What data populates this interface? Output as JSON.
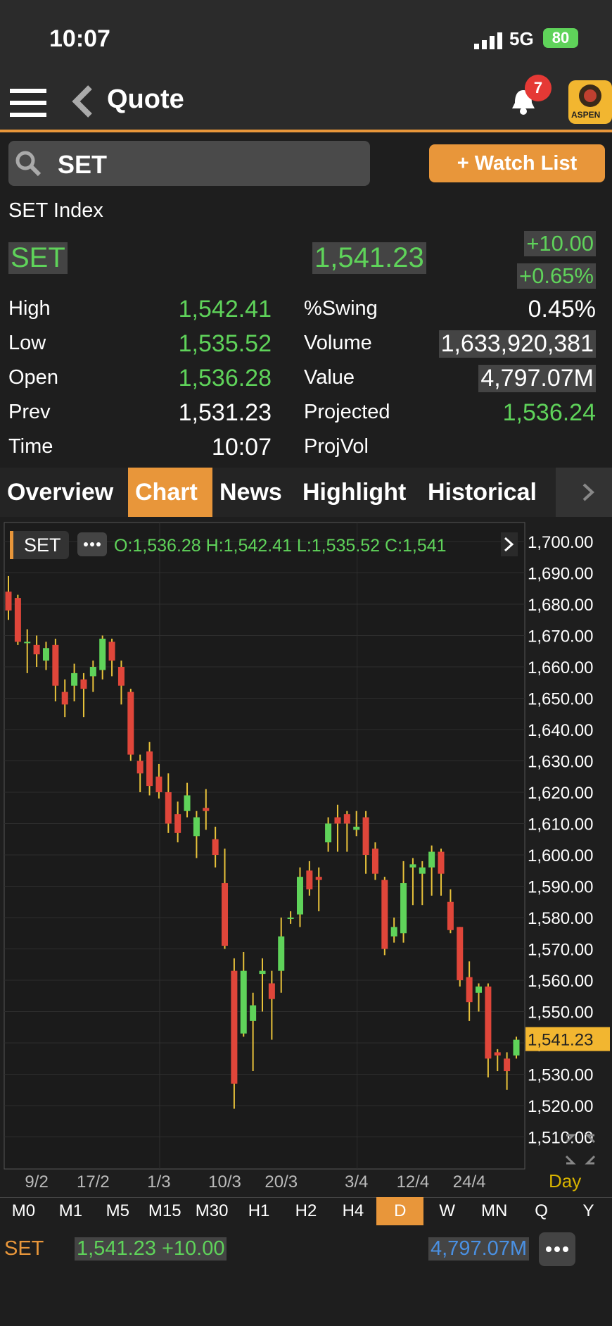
{
  "status": {
    "time": "10:07",
    "network": "5G",
    "battery": "80"
  },
  "nav": {
    "title": "Quote",
    "notification_count": "7",
    "logo_text": "ASPEN"
  },
  "search": {
    "value": "SET"
  },
  "watch_list_label": "+ Watch List",
  "quote": {
    "name": "SET Index",
    "symbol": "SET",
    "price": "1,541.23",
    "change": "+10.00",
    "change_pct": "+0.65%",
    "left": [
      {
        "label": "High",
        "value": "1,542.41",
        "color": "#5fd35a"
      },
      {
        "label": "Low",
        "value": "1,535.52",
        "color": "#5fd35a"
      },
      {
        "label": "Open",
        "value": "1,536.28",
        "color": "#5fd35a"
      },
      {
        "label": "Prev",
        "value": "1,531.23",
        "color": "#ffffff"
      },
      {
        "label": "Time",
        "value": "10:07",
        "color": "#ffffff"
      }
    ],
    "right": [
      {
        "label": "%Swing",
        "value": "0.45%",
        "color": "#ffffff",
        "boxed": false
      },
      {
        "label": "Volume",
        "value": "1,633,920,381",
        "color": "#ffffff",
        "boxed": true
      },
      {
        "label": "Value",
        "value": "4,797.07M",
        "color": "#ffffff",
        "boxed": true
      },
      {
        "label": "Projected",
        "value": "1,536.24",
        "color": "#5fd35a",
        "boxed": false
      },
      {
        "label": "ProjVol",
        "value": "",
        "color": "#ffffff",
        "boxed": false
      }
    ]
  },
  "tabs": [
    "Overview",
    "Chart",
    "News",
    "Highlight",
    "Historical"
  ],
  "active_tab": "Chart",
  "chart_header": {
    "symbol": "SET",
    "ohlc": "O:1,536.28  H:1,542.41  L:1,535.52  C:1,541"
  },
  "chart_data": {
    "type": "candlestick",
    "symbol": "SET",
    "y_ticks": [
      "1,700.00",
      "1,690.00",
      "1,680.00",
      "1,670.00",
      "1,660.00",
      "1,650.00",
      "1,640.00",
      "1,630.00",
      "1,620.00",
      "1,610.00",
      "1,600.00",
      "1,590.00",
      "1,580.00",
      "1,570.00",
      "1,560.00",
      "1,550.00",
      "1,540.00",
      "1,530.00",
      "1,520.00",
      "1,510.00"
    ],
    "ylim": [
      1505,
      1700
    ],
    "x_labels": [
      {
        "label": "9/2",
        "index": 3
      },
      {
        "label": "17/2",
        "index": 9
      },
      {
        "label": "1/3",
        "index": 16
      },
      {
        "label": "10/3",
        "index": 23
      },
      {
        "label": "20/3",
        "index": 29
      },
      {
        "label": "3/4",
        "index": 37
      },
      {
        "label": "12/4",
        "index": 43
      },
      {
        "label": "24/4",
        "index": 49
      }
    ],
    "last_price_label": "1,541.23",
    "last_price": 1541.23,
    "candles": [
      {
        "o": 1684,
        "h": 1689,
        "l": 1675,
        "c": 1678
      },
      {
        "o": 1682,
        "h": 1683,
        "l": 1667,
        "c": 1668
      },
      {
        "o": 1668,
        "h": 1672,
        "l": 1658,
        "c": 1668
      },
      {
        "o": 1667,
        "h": 1670,
        "l": 1660,
        "c": 1664
      },
      {
        "o": 1662,
        "h": 1668,
        "l": 1659,
        "c": 1666
      },
      {
        "o": 1667,
        "h": 1669,
        "l": 1649,
        "c": 1654
      },
      {
        "o": 1652,
        "h": 1656,
        "l": 1644,
        "c": 1648
      },
      {
        "o": 1654,
        "h": 1661,
        "l": 1649,
        "c": 1658
      },
      {
        "o": 1656,
        "h": 1658,
        "l": 1644,
        "c": 1653
      },
      {
        "o": 1657,
        "h": 1662,
        "l": 1652,
        "c": 1660
      },
      {
        "o": 1659,
        "h": 1670,
        "l": 1656,
        "c": 1669
      },
      {
        "o": 1668,
        "h": 1669,
        "l": 1657,
        "c": 1662
      },
      {
        "o": 1660,
        "h": 1662,
        "l": 1648,
        "c": 1654
      },
      {
        "o": 1652,
        "h": 1653,
        "l": 1630,
        "c": 1632
      },
      {
        "o": 1630,
        "h": 1632,
        "l": 1620,
        "c": 1626
      },
      {
        "o": 1633,
        "h": 1636,
        "l": 1619,
        "c": 1622
      },
      {
        "o": 1625,
        "h": 1629,
        "l": 1618,
        "c": 1620
      },
      {
        "o": 1620,
        "h": 1626,
        "l": 1607,
        "c": 1610
      },
      {
        "o": 1613,
        "h": 1617,
        "l": 1604,
        "c": 1607
      },
      {
        "o": 1614,
        "h": 1623,
        "l": 1612,
        "c": 1619
      },
      {
        "o": 1606,
        "h": 1614,
        "l": 1599,
        "c": 1612
      },
      {
        "o": 1615,
        "h": 1621,
        "l": 1608,
        "c": 1614
      },
      {
        "o": 1605,
        "h": 1609,
        "l": 1596,
        "c": 1600
      },
      {
        "o": 1591,
        "h": 1602,
        "l": 1570,
        "c": 1571
      },
      {
        "o": 1563,
        "h": 1567,
        "l": 1519,
        "c": 1527
      },
      {
        "o": 1543,
        "h": 1569,
        "l": 1542,
        "c": 1563
      },
      {
        "o": 1547,
        "h": 1556,
        "l": 1531,
        "c": 1552
      },
      {
        "o": 1562,
        "h": 1567,
        "l": 1550,
        "c": 1563
      },
      {
        "o": 1559,
        "h": 1563,
        "l": 1541,
        "c": 1554
      },
      {
        "o": 1563,
        "h": 1580,
        "l": 1556,
        "c": 1574
      },
      {
        "o": 1580,
        "h": 1582,
        "l": 1578,
        "c": 1580
      },
      {
        "o": 1581,
        "h": 1596,
        "l": 1577,
        "c": 1593
      },
      {
        "o": 1595,
        "h": 1598,
        "l": 1587,
        "c": 1589
      },
      {
        "o": 1593,
        "h": 1596,
        "l": 1582,
        "c": 1592
      },
      {
        "o": 1604,
        "h": 1612,
        "l": 1601,
        "c": 1610
      },
      {
        "o": 1612,
        "h": 1616,
        "l": 1601,
        "c": 1610
      },
      {
        "o": 1613,
        "h": 1614,
        "l": 1601,
        "c": 1610
      },
      {
        "o": 1608,
        "h": 1614,
        "l": 1606,
        "c": 1609
      },
      {
        "o": 1612,
        "h": 1614,
        "l": 1594,
        "c": 1600
      },
      {
        "o": 1602,
        "h": 1604,
        "l": 1592,
        "c": 1594
      },
      {
        "o": 1592,
        "h": 1593,
        "l": 1568,
        "c": 1570
      },
      {
        "o": 1574,
        "h": 1580,
        "l": 1572,
        "c": 1577
      },
      {
        "o": 1575,
        "h": 1598,
        "l": 1572,
        "c": 1591
      },
      {
        "o": 1596,
        "h": 1599,
        "l": 1584,
        "c": 1597
      },
      {
        "o": 1594,
        "h": 1598,
        "l": 1584,
        "c": 1596
      },
      {
        "o": 1596,
        "h": 1603,
        "l": 1587,
        "c": 1601
      },
      {
        "o": 1601,
        "h": 1602,
        "l": 1587,
        "c": 1594
      },
      {
        "o": 1585,
        "h": 1589,
        "l": 1575,
        "c": 1576
      },
      {
        "o": 1577,
        "h": 1577,
        "l": 1558,
        "c": 1560
      },
      {
        "o": 1561,
        "h": 1566,
        "l": 1547,
        "c": 1553
      },
      {
        "o": 1556,
        "h": 1559,
        "l": 1550,
        "c": 1558
      },
      {
        "o": 1558,
        "h": 1559,
        "l": 1529,
        "c": 1535
      },
      {
        "o": 1537,
        "h": 1538,
        "l": 1531,
        "c": 1536
      },
      {
        "o": 1535,
        "h": 1537,
        "l": 1525,
        "c": 1531
      },
      {
        "o": 1536,
        "h": 1542,
        "l": 1535,
        "c": 1541
      }
    ]
  },
  "chart_footer": {
    "interval_label": "Day"
  },
  "periods": [
    "M0",
    "M1",
    "M5",
    "M15",
    "M30",
    "H1",
    "H2",
    "H4",
    "D",
    "W",
    "MN",
    "Q",
    "Y"
  ],
  "active_period": "D",
  "bottom": {
    "symbol": "SET",
    "price_change": "1,541.23 +10.00",
    "value": "4,797.07M"
  }
}
